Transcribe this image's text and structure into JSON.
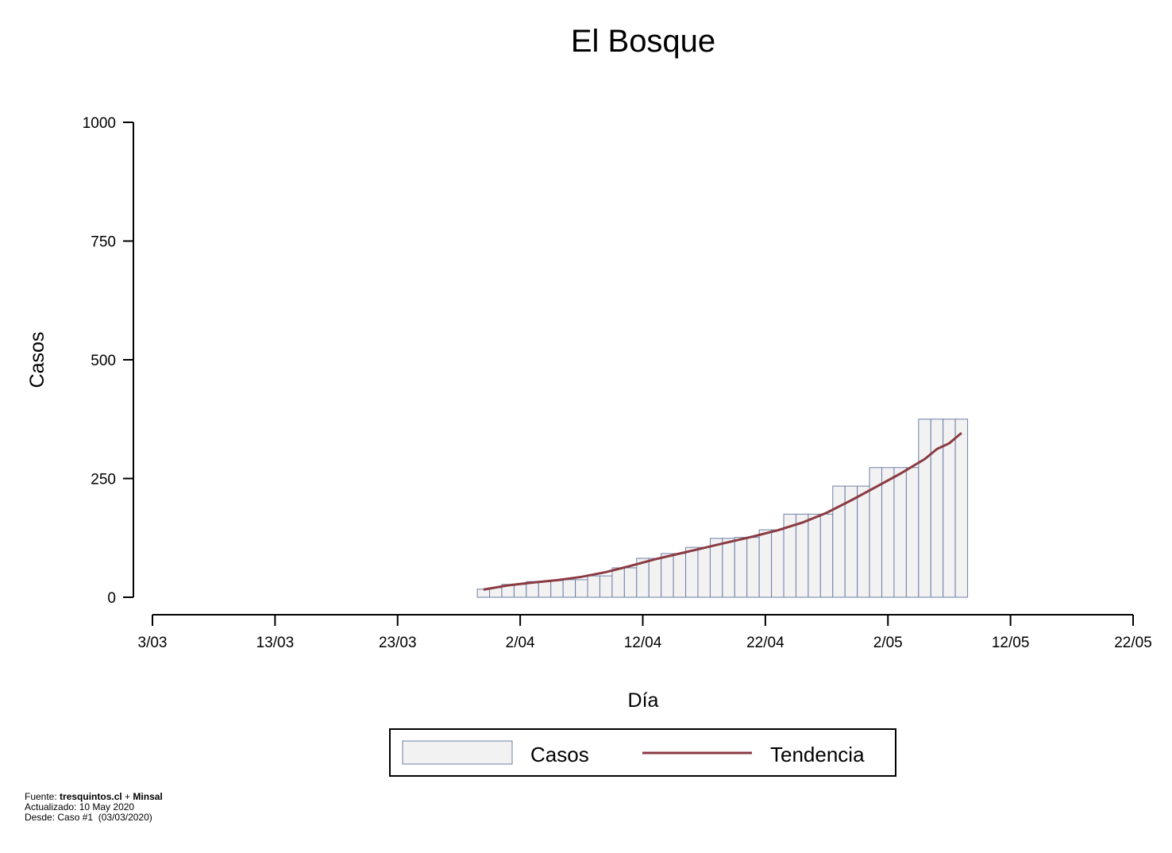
{
  "chart_data": {
    "type": "bar",
    "title": "El Bosque",
    "xlabel": "Día",
    "ylabel": "Casos",
    "ylim": [
      0,
      1000
    ],
    "yticks": [
      0,
      250,
      500,
      750,
      1000
    ],
    "xlim": [
      "2020-03-03",
      "2020-05-22"
    ],
    "xticks": [
      "3/03",
      "13/03",
      "23/03",
      "2/04",
      "12/04",
      "22/04",
      "2/05",
      "12/05",
      "22/05"
    ],
    "grid": false,
    "legend_position": "bottom",
    "series": [
      {
        "name": "Casos",
        "type": "bar",
        "color": "#f2f2f2",
        "edge_color": "#6e7fa5",
        "x": [
          "2020-03-30",
          "2020-03-31",
          "2020-04-01",
          "2020-04-02",
          "2020-04-03",
          "2020-04-04",
          "2020-04-05",
          "2020-04-06",
          "2020-04-07",
          "2020-04-08",
          "2020-04-09",
          "2020-04-10",
          "2020-04-11",
          "2020-04-12",
          "2020-04-13",
          "2020-04-14",
          "2020-04-15",
          "2020-04-16",
          "2020-04-17",
          "2020-04-18",
          "2020-04-19",
          "2020-04-20",
          "2020-04-21",
          "2020-04-22",
          "2020-04-23",
          "2020-04-24",
          "2020-04-25",
          "2020-04-26",
          "2020-04-27",
          "2020-04-28",
          "2020-04-29",
          "2020-04-30",
          "2020-05-01",
          "2020-05-02",
          "2020-05-03",
          "2020-05-04",
          "2020-05-05",
          "2020-05-06",
          "2020-05-07",
          "2020-05-08"
        ],
        "values": [
          17,
          20,
          27,
          27,
          33,
          33,
          35,
          37,
          37,
          45,
          45,
          62,
          62,
          82,
          82,
          92,
          92,
          105,
          105,
          124,
          124,
          126,
          126,
          142,
          142,
          175,
          175,
          175,
          175,
          234,
          234,
          234,
          273,
          273,
          273,
          273,
          375,
          375,
          375,
          375
        ]
      },
      {
        "name": "Tendencia",
        "type": "line",
        "color": "#8b3a42",
        "x": [
          "2020-03-30",
          "2020-04-01",
          "2020-04-03",
          "2020-04-05",
          "2020-04-07",
          "2020-04-09",
          "2020-04-11",
          "2020-04-13",
          "2020-04-15",
          "2020-04-17",
          "2020-04-19",
          "2020-04-21",
          "2020-04-23",
          "2020-04-25",
          "2020-04-27",
          "2020-04-29",
          "2020-05-01",
          "2020-05-03",
          "2020-05-05",
          "2020-05-06",
          "2020-05-07",
          "2020-05-08"
        ],
        "values": [
          16,
          25,
          31,
          36,
          43,
          53,
          66,
          80,
          92,
          104,
          116,
          128,
          141,
          157,
          178,
          204,
          232,
          260,
          291,
          312,
          324,
          346
        ]
      }
    ]
  },
  "legend": {
    "items": [
      {
        "label": "Casos"
      },
      {
        "label": "Tendencia"
      }
    ]
  },
  "footer": {
    "source_prefix": "Fuente: ",
    "source_site": "tresquintos.cl",
    "source_plus": " + ",
    "source_org": "Minsal",
    "updated": "Actualizado: 10 May 2020",
    "since": "Desde: Caso #1  (03/03/2020)"
  }
}
